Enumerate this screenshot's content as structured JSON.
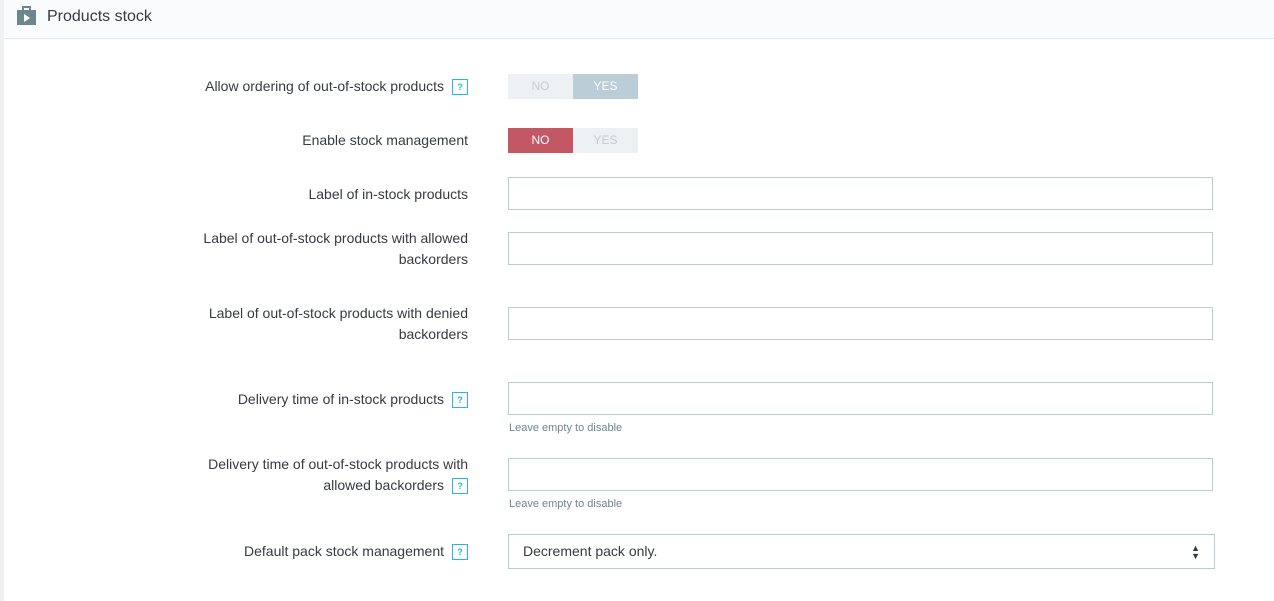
{
  "header": {
    "title": "Products stock"
  },
  "help_icon": "?",
  "fields": [
    {
      "label": "Allow ordering of out-of-stock products",
      "help": true,
      "control": "toggle",
      "options": [
        "NO",
        "YES"
      ],
      "selected": 1
    },
    {
      "label": "Enable stock management",
      "help": false,
      "control": "toggle",
      "options": [
        "NO",
        "YES"
      ],
      "selected": 0
    },
    {
      "label": "Label of in-stock products",
      "help": false,
      "control": "input"
    },
    {
      "label": "Label of out-of-stock products with allowed backorders",
      "help": false,
      "control": "input"
    },
    {
      "label": "Label of out-of-stock products with denied backorders",
      "help": false,
      "control": "input"
    },
    {
      "label": "Delivery time of in-stock products",
      "help": true,
      "control": "input",
      "hint": "Leave empty to disable"
    },
    {
      "label": "Delivery time of out-of-stock products with allowed backorders",
      "help": true,
      "control": "input",
      "hint": "Leave empty to disable"
    },
    {
      "label": "Default pack stock management",
      "help": true,
      "control": "select",
      "value": "Decrement pack only."
    }
  ]
}
